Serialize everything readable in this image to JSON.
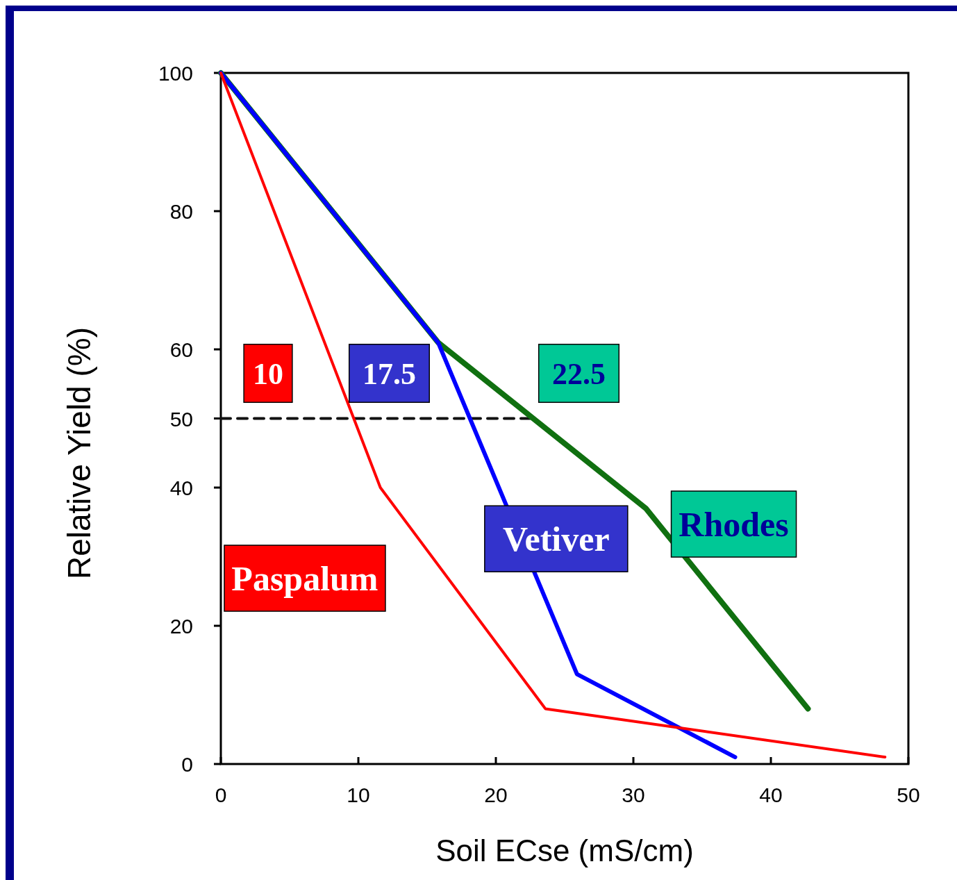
{
  "chart_data": {
    "type": "line",
    "xlabel": "Soil ECse (mS/cm)",
    "ylabel": "Relative Yield (%)",
    "xlim": [
      0,
      50
    ],
    "ylim": [
      0,
      100
    ],
    "xticks": [
      0,
      10,
      20,
      30,
      40,
      50
    ],
    "yticks": [
      0,
      20,
      40,
      50,
      60,
      80,
      100
    ],
    "grid": false,
    "legend": false,
    "marker": "none",
    "line_style": "solid",
    "series": [
      {
        "name": "Paspalum",
        "color": "#ff0000",
        "x": [
          0,
          11.6,
          23.6,
          48.3
        ],
        "values": [
          100,
          40,
          8,
          1
        ]
      },
      {
        "name": "Vetiver",
        "color": "#0000ff",
        "x": [
          0,
          15.8,
          25.9,
          37.4
        ],
        "values": [
          100,
          61,
          13,
          1
        ]
      },
      {
        "name": "Rhodes",
        "color": "#107010",
        "x": [
          0,
          15.8,
          30.9,
          42.7
        ],
        "values": [
          100,
          61,
          37,
          8
        ]
      },
      {
        "type": "line",
        "color": "#111111",
        "line_style": "dashed",
        "x": [
          0,
          22.5
        ],
        "values": [
          50,
          50
        ]
      }
    ],
    "annotations": [
      {
        "text": "10",
        "x": 10,
        "y": 50
      },
      {
        "text": "17.5",
        "x": 17.5,
        "y": 50
      },
      {
        "text": "22.5",
        "x": 22.5,
        "y": 50
      }
    ]
  }
}
